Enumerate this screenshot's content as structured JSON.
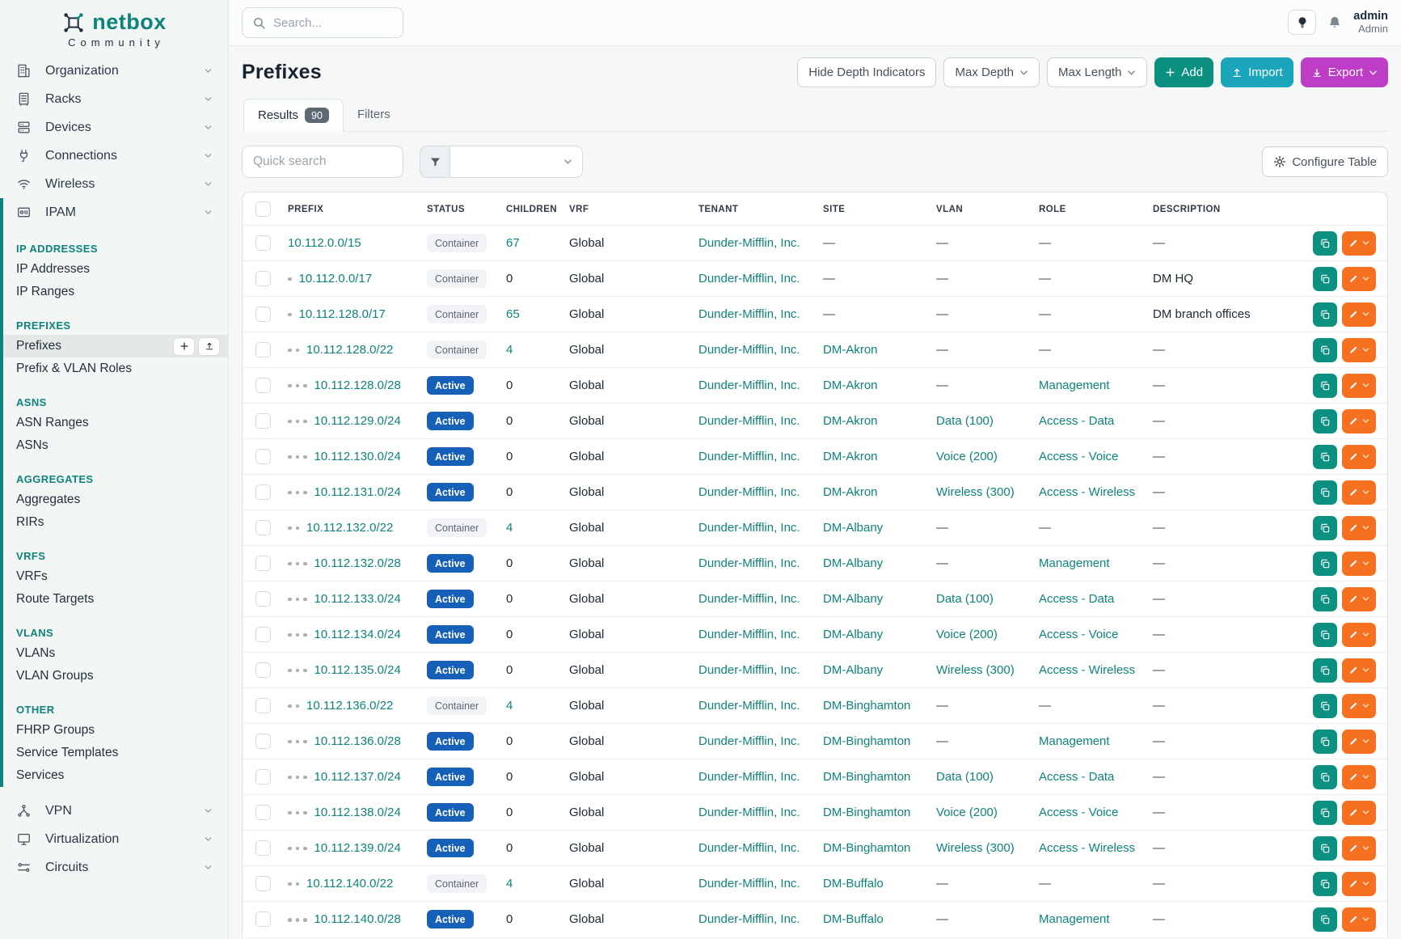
{
  "brand": {
    "name": "netbox",
    "edition": "Community"
  },
  "topbar": {
    "search_placeholder": "Search...",
    "user_name": "admin",
    "user_role": "Admin"
  },
  "sidebar": {
    "top_items": [
      {
        "label": "Organization",
        "icon": "building"
      },
      {
        "label": "Racks",
        "icon": "rack"
      },
      {
        "label": "Devices",
        "icon": "server"
      },
      {
        "label": "Connections",
        "icon": "plug"
      },
      {
        "label": "Wireless",
        "icon": "wifi"
      }
    ],
    "ipam": {
      "label": "IPAM",
      "icon": "ipam"
    },
    "ipam_groups": [
      {
        "heading": "IP ADDRESSES",
        "items": [
          {
            "label": "IP Addresses"
          },
          {
            "label": "IP Ranges"
          }
        ]
      },
      {
        "heading": "PREFIXES",
        "items": [
          {
            "label": "Prefixes",
            "active": true
          },
          {
            "label": "Prefix & VLAN Roles"
          }
        ]
      },
      {
        "heading": "ASNS",
        "items": [
          {
            "label": "ASN Ranges"
          },
          {
            "label": "ASNs"
          }
        ]
      },
      {
        "heading": "AGGREGATES",
        "items": [
          {
            "label": "Aggregates"
          },
          {
            "label": "RIRs"
          }
        ]
      },
      {
        "heading": "VRFS",
        "items": [
          {
            "label": "VRFs"
          },
          {
            "label": "Route Targets"
          }
        ]
      },
      {
        "heading": "VLANS",
        "items": [
          {
            "label": "VLANs"
          },
          {
            "label": "VLAN Groups"
          }
        ]
      },
      {
        "heading": "OTHER",
        "items": [
          {
            "label": "FHRP Groups"
          },
          {
            "label": "Service Templates"
          },
          {
            "label": "Services"
          }
        ]
      }
    ],
    "bottom_items": [
      {
        "label": "VPN",
        "icon": "vpn"
      },
      {
        "label": "Virtualization",
        "icon": "monitor"
      },
      {
        "label": "Circuits",
        "icon": "circuit"
      }
    ]
  },
  "page": {
    "title": "Prefixes",
    "buttons": {
      "hide_depth": "Hide Depth Indicators",
      "max_depth": "Max Depth",
      "max_length": "Max Length",
      "add": "Add",
      "import": "Import",
      "export": "Export"
    },
    "tabs": {
      "results_label": "Results",
      "results_count": "90",
      "filters_label": "Filters"
    },
    "toolbar": {
      "quick_search_placeholder": "Quick search",
      "configure_table": "Configure Table"
    }
  },
  "table": {
    "columns": [
      "PREFIX",
      "STATUS",
      "CHILDREN",
      "VRF",
      "TENANT",
      "SITE",
      "VLAN",
      "ROLE",
      "DESCRIPTION"
    ],
    "rows": [
      {
        "depth": 0,
        "prefix": "10.112.0.0/15",
        "status": "Container",
        "children": "67",
        "vrf": "Global",
        "tenant": "Dunder-Mifflin, Inc.",
        "site": "—",
        "vlan": "—",
        "role": "—",
        "description": "—"
      },
      {
        "depth": 1,
        "prefix": "10.112.0.0/17",
        "status": "Container",
        "children": "0",
        "vrf": "Global",
        "tenant": "Dunder-Mifflin, Inc.",
        "site": "—",
        "vlan": "—",
        "role": "—",
        "description": "DM HQ"
      },
      {
        "depth": 1,
        "prefix": "10.112.128.0/17",
        "status": "Container",
        "children": "65",
        "vrf": "Global",
        "tenant": "Dunder-Mifflin, Inc.",
        "site": "—",
        "vlan": "—",
        "role": "—",
        "description": "DM branch offices"
      },
      {
        "depth": 2,
        "prefix": "10.112.128.0/22",
        "status": "Container",
        "children": "4",
        "vrf": "Global",
        "tenant": "Dunder-Mifflin, Inc.",
        "site": "DM-Akron",
        "vlan": "—",
        "role": "—",
        "description": "—"
      },
      {
        "depth": 3,
        "prefix": "10.112.128.0/28",
        "status": "Active",
        "children": "0",
        "vrf": "Global",
        "tenant": "Dunder-Mifflin, Inc.",
        "site": "DM-Akron",
        "vlan": "—",
        "role": "Management",
        "description": "—"
      },
      {
        "depth": 3,
        "prefix": "10.112.129.0/24",
        "status": "Active",
        "children": "0",
        "vrf": "Global",
        "tenant": "Dunder-Mifflin, Inc.",
        "site": "DM-Akron",
        "vlan": "Data (100)",
        "role": "Access - Data",
        "description": "—"
      },
      {
        "depth": 3,
        "prefix": "10.112.130.0/24",
        "status": "Active",
        "children": "0",
        "vrf": "Global",
        "tenant": "Dunder-Mifflin, Inc.",
        "site": "DM-Akron",
        "vlan": "Voice (200)",
        "role": "Access - Voice",
        "description": "—"
      },
      {
        "depth": 3,
        "prefix": "10.112.131.0/24",
        "status": "Active",
        "children": "0",
        "vrf": "Global",
        "tenant": "Dunder-Mifflin, Inc.",
        "site": "DM-Akron",
        "vlan": "Wireless (300)",
        "role": "Access - Wireless",
        "description": "—"
      },
      {
        "depth": 2,
        "prefix": "10.112.132.0/22",
        "status": "Container",
        "children": "4",
        "vrf": "Global",
        "tenant": "Dunder-Mifflin, Inc.",
        "site": "DM-Albany",
        "vlan": "—",
        "role": "—",
        "description": "—"
      },
      {
        "depth": 3,
        "prefix": "10.112.132.0/28",
        "status": "Active",
        "children": "0",
        "vrf": "Global",
        "tenant": "Dunder-Mifflin, Inc.",
        "site": "DM-Albany",
        "vlan": "—",
        "role": "Management",
        "description": "—"
      },
      {
        "depth": 3,
        "prefix": "10.112.133.0/24",
        "status": "Active",
        "children": "0",
        "vrf": "Global",
        "tenant": "Dunder-Mifflin, Inc.",
        "site": "DM-Albany",
        "vlan": "Data (100)",
        "role": "Access - Data",
        "description": "—"
      },
      {
        "depth": 3,
        "prefix": "10.112.134.0/24",
        "status": "Active",
        "children": "0",
        "vrf": "Global",
        "tenant": "Dunder-Mifflin, Inc.",
        "site": "DM-Albany",
        "vlan": "Voice (200)",
        "role": "Access - Voice",
        "description": "—"
      },
      {
        "depth": 3,
        "prefix": "10.112.135.0/24",
        "status": "Active",
        "children": "0",
        "vrf": "Global",
        "tenant": "Dunder-Mifflin, Inc.",
        "site": "DM-Albany",
        "vlan": "Wireless (300)",
        "role": "Access - Wireless",
        "description": "—"
      },
      {
        "depth": 2,
        "prefix": "10.112.136.0/22",
        "status": "Container",
        "children": "4",
        "vrf": "Global",
        "tenant": "Dunder-Mifflin, Inc.",
        "site": "DM-Binghamton",
        "vlan": "—",
        "role": "—",
        "description": "—"
      },
      {
        "depth": 3,
        "prefix": "10.112.136.0/28",
        "status": "Active",
        "children": "0",
        "vrf": "Global",
        "tenant": "Dunder-Mifflin, Inc.",
        "site": "DM-Binghamton",
        "vlan": "—",
        "role": "Management",
        "description": "—"
      },
      {
        "depth": 3,
        "prefix": "10.112.137.0/24",
        "status": "Active",
        "children": "0",
        "vrf": "Global",
        "tenant": "Dunder-Mifflin, Inc.",
        "site": "DM-Binghamton",
        "vlan": "Data (100)",
        "role": "Access - Data",
        "description": "—"
      },
      {
        "depth": 3,
        "prefix": "10.112.138.0/24",
        "status": "Active",
        "children": "0",
        "vrf": "Global",
        "tenant": "Dunder-Mifflin, Inc.",
        "site": "DM-Binghamton",
        "vlan": "Voice (200)",
        "role": "Access - Voice",
        "description": "—"
      },
      {
        "depth": 3,
        "prefix": "10.112.139.0/24",
        "status": "Active",
        "children": "0",
        "vrf": "Global",
        "tenant": "Dunder-Mifflin, Inc.",
        "site": "DM-Binghamton",
        "vlan": "Wireless (300)",
        "role": "Access - Wireless",
        "description": "—"
      },
      {
        "depth": 2,
        "prefix": "10.112.140.0/22",
        "status": "Container",
        "children": "4",
        "vrf": "Global",
        "tenant": "Dunder-Mifflin, Inc.",
        "site": "DM-Buffalo",
        "vlan": "—",
        "role": "—",
        "description": "—"
      },
      {
        "depth": 3,
        "prefix": "10.112.140.0/28",
        "status": "Active",
        "children": "0",
        "vrf": "Global",
        "tenant": "Dunder-Mifflin, Inc.",
        "site": "DM-Buffalo",
        "vlan": "—",
        "role": "Management",
        "description": "—"
      }
    ]
  },
  "colors": {
    "accent_teal": "#0d837b",
    "active_badge_blue": "#1660b8",
    "add_button": "#0c9180",
    "import_button": "#1aa5ba",
    "export_button": "#bd3dc6",
    "edit_button_orange": "#f5711f"
  }
}
